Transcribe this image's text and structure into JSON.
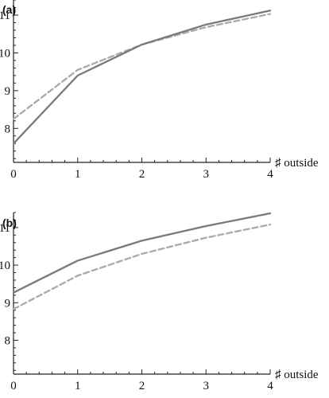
{
  "chart_data": [
    {
      "type": "line",
      "panel_label": "(a)",
      "xlabel": "♯ outside",
      "ylabel": "",
      "x": [
        0,
        1,
        2,
        3,
        4
      ],
      "xlim": [
        0,
        4
      ],
      "ylim": [
        7.1,
        11.4
      ],
      "xticks": [
        "0",
        "1",
        "2",
        "3",
        "4"
      ],
      "yticks": [
        8,
        9,
        10,
        11
      ],
      "yticklabels": [
        "8",
        "9",
        "10",
        "11"
      ],
      "grid": false,
      "series": [
        {
          "style": "solid",
          "color": "#7a7a7a",
          "values": [
            7.6,
            9.4,
            10.22,
            10.75,
            11.12
          ]
        },
        {
          "style": "dashed",
          "color": "#a9a9a9",
          "values": [
            8.25,
            9.55,
            10.22,
            10.68,
            11.03
          ]
        }
      ]
    },
    {
      "type": "line",
      "panel_label": "(b)",
      "xlabel": "♯ outside",
      "ylabel": "",
      "x": [
        0,
        1,
        2,
        3,
        4
      ],
      "xlim": [
        0,
        4
      ],
      "ylim": [
        7.1,
        11.4
      ],
      "xticks": [
        "0",
        "1",
        "2",
        "3",
        "4"
      ],
      "yticks": [
        8,
        9,
        10,
        11
      ],
      "yticklabels": [
        "8",
        "9",
        "10",
        "11"
      ],
      "grid": false,
      "series": [
        {
          "style": "solid",
          "color": "#7a7a7a",
          "values": [
            9.27,
            10.12,
            10.65,
            11.04,
            11.38
          ]
        },
        {
          "style": "dashed",
          "color": "#a9a9a9",
          "values": [
            8.83,
            9.72,
            10.3,
            10.73,
            11.08
          ]
        }
      ]
    }
  ]
}
